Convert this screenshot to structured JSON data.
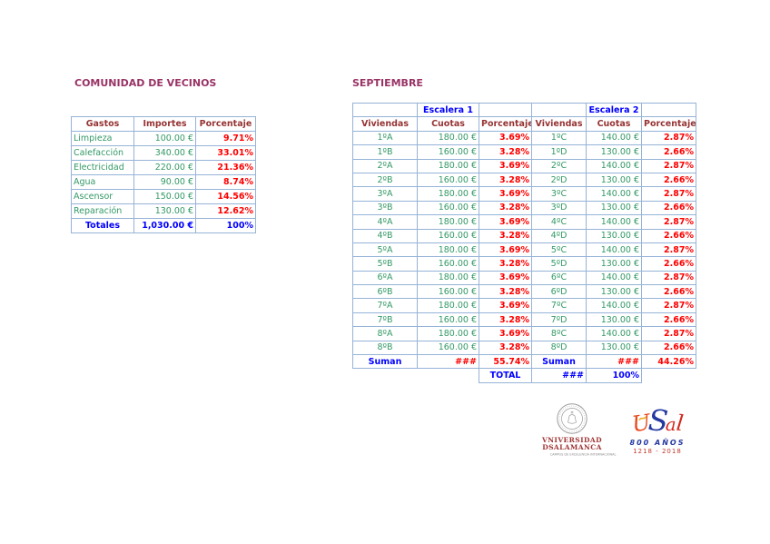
{
  "colors": {
    "table_border": "#95B3D7",
    "section_title": "#993366",
    "column_header_text": "#963333",
    "data_text_green": "#339966",
    "percent_red": "#FF0000",
    "total_blue": "#0000FF"
  },
  "left_section": {
    "title": "COMUNIDAD DE VECINOS",
    "table": {
      "headers": [
        "Gastos",
        "Importes",
        "Porcentaje"
      ],
      "rows": [
        {
          "name": "Limpieza",
          "amount": "100.00 €",
          "percent": "9.71%"
        },
        {
          "name": "Calefacción",
          "amount": "340.00 €",
          "percent": "33.01%"
        },
        {
          "name": "Electricidad",
          "amount": "220.00 €",
          "percent": "21.36%"
        },
        {
          "name": "Agua",
          "amount": "90.00 €",
          "percent": "8.74%"
        },
        {
          "name": "Ascensor",
          "amount": "150.00 €",
          "percent": "14.56%"
        },
        {
          "name": "Reparación",
          "amount": "130.00 €",
          "percent": "12.62%"
        }
      ],
      "totals": {
        "label": "Totales",
        "amount": "1,030.00 €",
        "percent": "100%"
      }
    }
  },
  "right_section": {
    "title": "SEPTIEMBRE",
    "table": {
      "group_headers": [
        "Escalera 1",
        "Escalera 2"
      ],
      "col_headers": [
        "Viviendas",
        "Cuotas",
        "Porcentaje",
        "Viviendas",
        "Cuotas",
        "Porcentaje"
      ],
      "rows": [
        {
          "v1": "1ºA",
          "c1": "180.00 €",
          "p1": "3.69%",
          "v2": "1ºC",
          "c2": "140.00 €",
          "p2": "2.87%"
        },
        {
          "v1": "1ºB",
          "c1": "160.00 €",
          "p1": "3.28%",
          "v2": "1ºD",
          "c2": "130.00 €",
          "p2": "2.66%"
        },
        {
          "v1": "2ºA",
          "c1": "180.00 €",
          "p1": "3.69%",
          "v2": "2ºC",
          "c2": "140.00 €",
          "p2": "2.87%"
        },
        {
          "v1": "2ºB",
          "c1": "160.00 €",
          "p1": "3.28%",
          "v2": "2ºD",
          "c2": "130.00 €",
          "p2": "2.66%"
        },
        {
          "v1": "3ºA",
          "c1": "180.00 €",
          "p1": "3.69%",
          "v2": "3ºC",
          "c2": "140.00 €",
          "p2": "2.87%"
        },
        {
          "v1": "3ºB",
          "c1": "160.00 €",
          "p1": "3.28%",
          "v2": "3ºD",
          "c2": "130.00 €",
          "p2": "2.66%"
        },
        {
          "v1": "4ºA",
          "c1": "180.00 €",
          "p1": "3.69%",
          "v2": "4ºC",
          "c2": "140.00 €",
          "p2": "2.87%"
        },
        {
          "v1": "4ºB",
          "c1": "160.00 €",
          "p1": "3.28%",
          "v2": "4ºD",
          "c2": "130.00 €",
          "p2": "2.66%"
        },
        {
          "v1": "5ºA",
          "c1": "180.00 €",
          "p1": "3.69%",
          "v2": "5ºC",
          "c2": "140.00 €",
          "p2": "2.87%"
        },
        {
          "v1": "5ºB",
          "c1": "160.00 €",
          "p1": "3.28%",
          "v2": "5ºD",
          "c2": "130.00 €",
          "p2": "2.66%"
        },
        {
          "v1": "6ºA",
          "c1": "180.00 €",
          "p1": "3.69%",
          "v2": "6ºC",
          "c2": "140.00 €",
          "p2": "2.87%"
        },
        {
          "v1": "6ºB",
          "c1": "160.00 €",
          "p1": "3.28%",
          "v2": "6ºD",
          "c2": "130.00 €",
          "p2": "2.66%"
        },
        {
          "v1": "7ºA",
          "c1": "180.00 €",
          "p1": "3.69%",
          "v2": "7ºC",
          "c2": "140.00 €",
          "p2": "2.87%"
        },
        {
          "v1": "7ºB",
          "c1": "160.00 €",
          "p1": "3.28%",
          "v2": "7ºD",
          "c2": "130.00 €",
          "p2": "2.66%"
        },
        {
          "v1": "8ºA",
          "c1": "180.00 €",
          "p1": "3.69%",
          "v2": "8ºC",
          "c2": "140.00 €",
          "p2": "2.87%"
        },
        {
          "v1": "8ºB",
          "c1": "160.00 €",
          "p1": "3.28%",
          "v2": "8ºD",
          "c2": "130.00 €",
          "p2": "2.66%"
        }
      ],
      "suman_row": {
        "label1": "Suman",
        "cuotas1": "###",
        "percent1": "55.74%",
        "label2": "Suman",
        "cuotas2": "###",
        "percent2": "44.26%"
      },
      "total_row": {
        "label": "TOTAL",
        "value": "###",
        "percent": "100%"
      }
    }
  },
  "footer": {
    "university": {
      "line1": "VNIVERSIDAD",
      "line2": "DSALAMANCA",
      "line3": "CAMPUS DE EXCELENCIA INTERNACIONAL"
    },
    "usal800": {
      "wordmark_letters": [
        "U",
        "S",
        "a",
        "l"
      ],
      "years_label": "800 AÑOS",
      "dates": "1218 - 2018"
    }
  }
}
